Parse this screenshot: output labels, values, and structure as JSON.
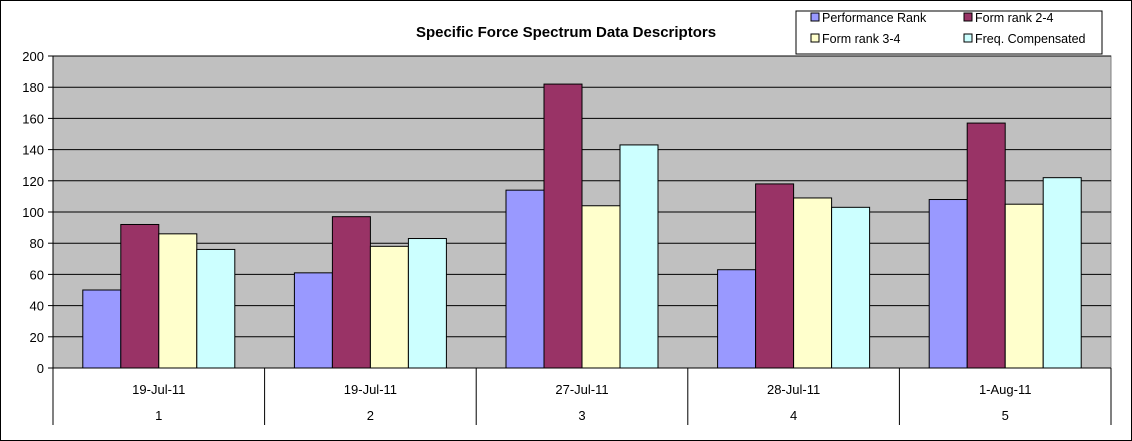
{
  "chart_data": {
    "type": "bar",
    "title": "Specific Force Spectrum Data Descriptors",
    "categories": [
      {
        "date": "19-Jul-11",
        "index": "1"
      },
      {
        "date": "19-Jul-11",
        "index": "2"
      },
      {
        "date": "27-Jul-11",
        "index": "3"
      },
      {
        "date": "28-Jul-11",
        "index": "4"
      },
      {
        "date": "1-Aug-11",
        "index": "5"
      }
    ],
    "series": [
      {
        "name": "Performance Rank",
        "color": "#9999ff",
        "values": [
          50,
          61,
          114,
          63,
          108
        ]
      },
      {
        "name": "Form rank 2-4",
        "color": "#993366",
        "values": [
          92,
          97,
          182,
          118,
          157
        ]
      },
      {
        "name": "Form rank 3-4",
        "color": "#ffffcc",
        "values": [
          86,
          78,
          104,
          109,
          105
        ]
      },
      {
        "name": "Freq. Compensated",
        "color": "#ccffff",
        "values": [
          76,
          83,
          143,
          103,
          122
        ]
      }
    ],
    "ylim": [
      0,
      200
    ],
    "yticks": [
      0,
      20,
      40,
      60,
      80,
      100,
      120,
      140,
      160,
      180,
      200
    ],
    "grid": true,
    "plot_background": "#c0c0c0",
    "legend_position": "top-right"
  }
}
